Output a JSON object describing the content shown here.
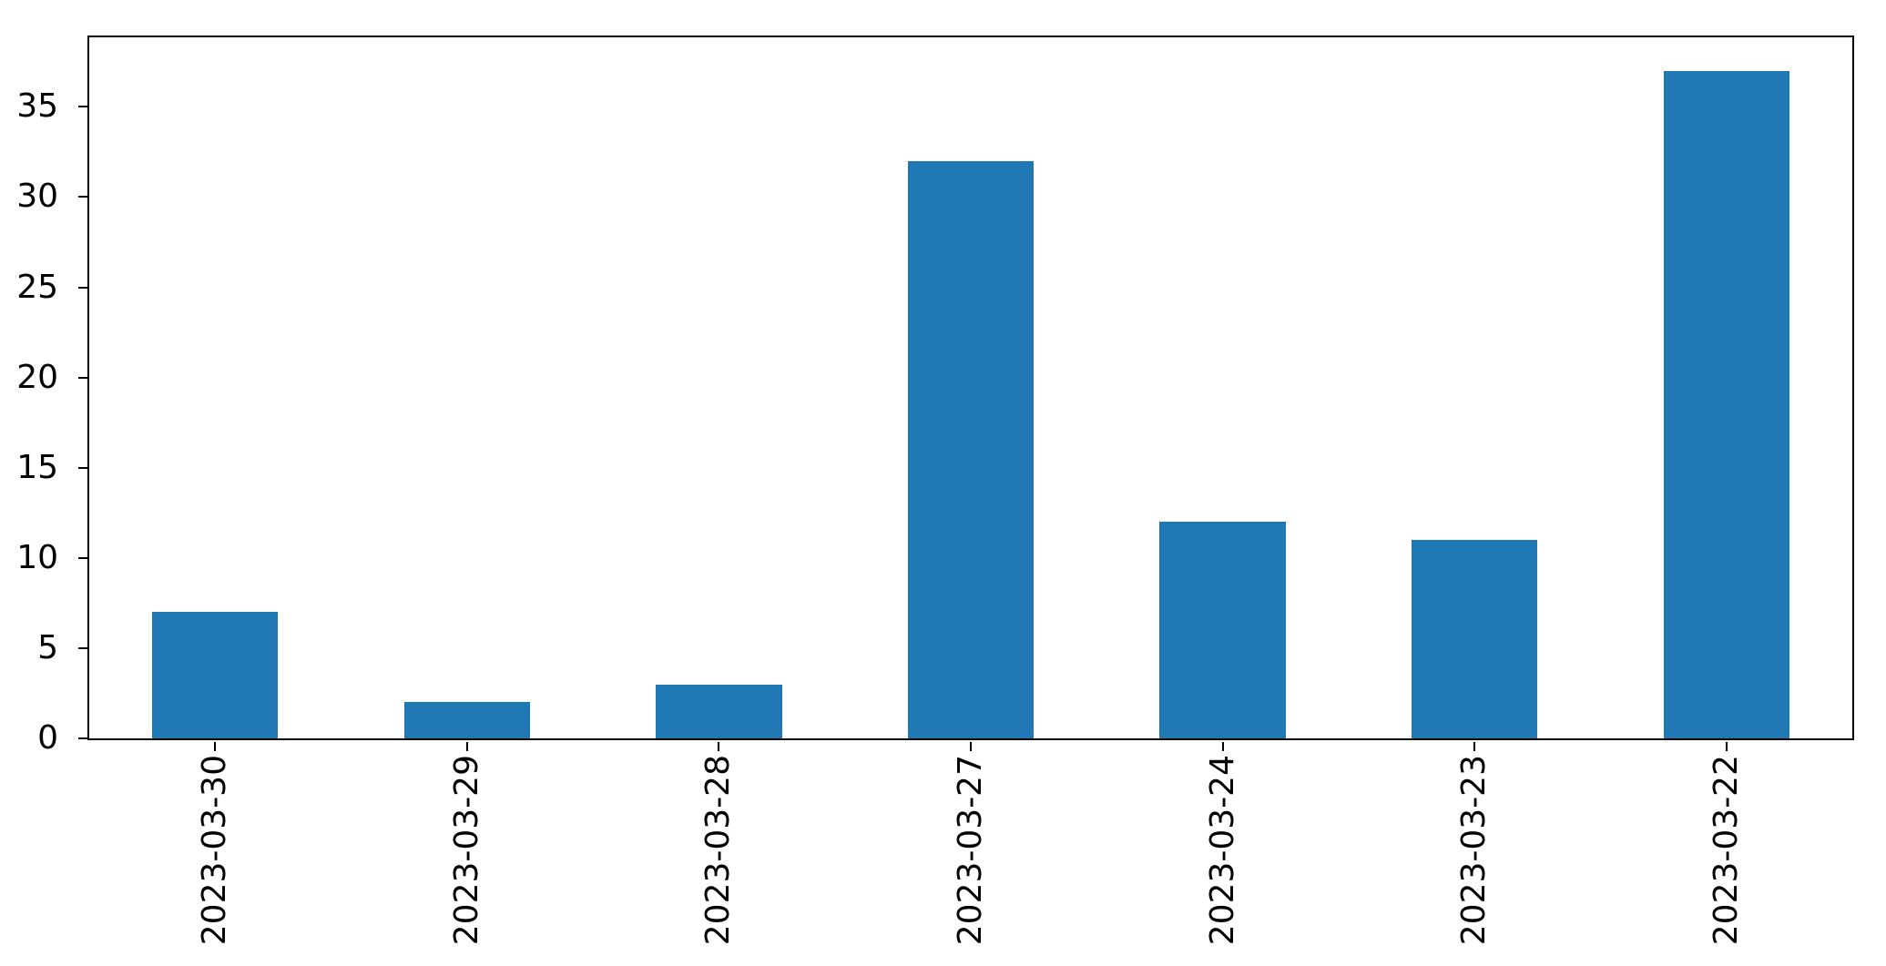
{
  "chart_data": {
    "type": "bar",
    "title": "",
    "xlabel": "",
    "ylabel": "",
    "categories": [
      "2023-03-30",
      "2023-03-29",
      "2023-03-28",
      "2023-03-27",
      "2023-03-24",
      "2023-03-23",
      "2023-03-22"
    ],
    "values": [
      7,
      2,
      3,
      32,
      12,
      11,
      37
    ],
    "yticks": [
      0,
      5,
      10,
      15,
      20,
      25,
      30,
      35
    ],
    "ylim": [
      0,
      38.85
    ],
    "bar_color": "#1f77b4",
    "background_color": "#ffffff",
    "spine_color": "#000000",
    "tick_label_color": "#000000",
    "x_tick_rotation_deg": 90,
    "bar_width_fraction": 0.5,
    "grid": false,
    "legend_position": "none"
  }
}
